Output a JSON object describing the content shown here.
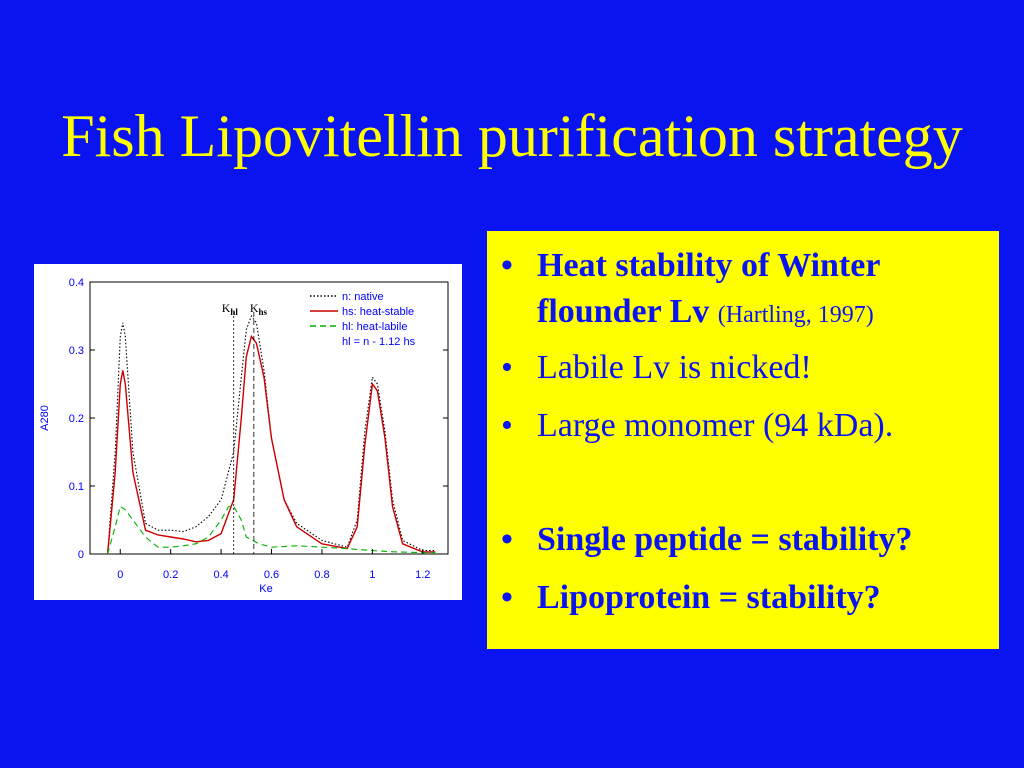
{
  "slide": {
    "title": "Fish Lipovitellin purification strategy",
    "colors": {
      "background": "#0a14f0",
      "title": "#ffff00",
      "panel": "#ffff00",
      "panel_text": "#0a14f0"
    }
  },
  "bullets": [
    {
      "marker": "•",
      "lines": [
        "Heat stability of Winter",
        "flounder Lv"
      ],
      "citation": "(Hartling, 1997)",
      "bold": true
    },
    {
      "marker": "•",
      "text": "Labile Lv is nicked!",
      "bold": false
    },
    {
      "marker": "•",
      "text": "Large monomer (94 kDa).",
      "bold": false
    },
    {
      "marker": "•",
      "text": "Single peptide = stability?",
      "bold": true
    },
    {
      "marker": "•",
      "text": "Lipoprotein =  stability?",
      "bold": true
    }
  ],
  "chart_data": {
    "type": "line",
    "xlabel": "Ke",
    "ylabel": "A280",
    "xlim": [
      -0.12,
      1.3
    ],
    "ylim": [
      0,
      0.4
    ],
    "xticks": [
      "0",
      "0.2",
      "0.4",
      "0.6",
      "0.8",
      "1",
      "1.2"
    ],
    "xtick_values": [
      0,
      0.2,
      0.4,
      0.6,
      0.8,
      1.0,
      1.2
    ],
    "yticks": [
      "0",
      "0.1",
      "0.2",
      "0.3",
      "0.4"
    ],
    "ytick_values": [
      0,
      0.1,
      0.2,
      0.3,
      0.4
    ],
    "grid": false,
    "legend_position": "top-right",
    "markers": [
      {
        "label_main": "K",
        "label_sub": "hl",
        "x": 0.45
      },
      {
        "label_main": "K",
        "label_sub": "hs",
        "x": 0.53
      }
    ],
    "series": [
      {
        "name": "n: native",
        "color": "#000000",
        "dash": "dotted",
        "x": [
          -0.05,
          -0.02,
          0.0,
          0.01,
          0.02,
          0.05,
          0.1,
          0.15,
          0.2,
          0.25,
          0.3,
          0.35,
          0.4,
          0.45,
          0.48,
          0.5,
          0.52,
          0.54,
          0.57,
          0.6,
          0.65,
          0.7,
          0.8,
          0.9,
          0.94,
          0.97,
          1.0,
          1.02,
          1.05,
          1.08,
          1.12,
          1.2,
          1.25
        ],
        "y": [
          0.0,
          0.15,
          0.32,
          0.34,
          0.32,
          0.15,
          0.045,
          0.035,
          0.035,
          0.033,
          0.04,
          0.055,
          0.08,
          0.15,
          0.26,
          0.33,
          0.35,
          0.34,
          0.27,
          0.17,
          0.08,
          0.045,
          0.02,
          0.01,
          0.05,
          0.18,
          0.26,
          0.25,
          0.18,
          0.08,
          0.02,
          0.005,
          0.005
        ]
      },
      {
        "name": "hs: heat-stable",
        "color": "#cc0000",
        "dash": "solid",
        "x": [
          -0.05,
          -0.02,
          0.0,
          0.01,
          0.02,
          0.05,
          0.1,
          0.15,
          0.2,
          0.25,
          0.3,
          0.35,
          0.4,
          0.45,
          0.48,
          0.5,
          0.52,
          0.54,
          0.57,
          0.6,
          0.65,
          0.7,
          0.8,
          0.9,
          0.94,
          0.97,
          1.0,
          1.02,
          1.05,
          1.08,
          1.12,
          1.2,
          1.25
        ],
        "y": [
          0.0,
          0.12,
          0.25,
          0.27,
          0.25,
          0.12,
          0.035,
          0.028,
          0.025,
          0.022,
          0.018,
          0.02,
          0.03,
          0.08,
          0.2,
          0.29,
          0.32,
          0.31,
          0.26,
          0.17,
          0.08,
          0.04,
          0.015,
          0.008,
          0.04,
          0.16,
          0.25,
          0.24,
          0.17,
          0.07,
          0.015,
          0.003,
          0.003
        ]
      },
      {
        "name": "hl: heat-labile",
        "color": "#00b000",
        "dash": "dashed",
        "x": [
          -0.05,
          -0.02,
          0.0,
          0.02,
          0.05,
          0.1,
          0.15,
          0.2,
          0.25,
          0.3,
          0.35,
          0.4,
          0.43,
          0.45,
          0.48,
          0.5,
          0.55,
          0.6,
          0.7,
          0.8,
          0.9,
          1.0,
          1.1,
          1.2,
          1.25
        ],
        "y": [
          0.0,
          0.04,
          0.07,
          0.065,
          0.05,
          0.025,
          0.01,
          0.01,
          0.012,
          0.015,
          0.025,
          0.05,
          0.07,
          0.07,
          0.05,
          0.025,
          0.015,
          0.01,
          0.012,
          0.01,
          0.008,
          0.005,
          0.003,
          0.002,
          0.002
        ]
      },
      {
        "name": "hl = n - 1.12 hs",
        "color": "#0000ff",
        "dash": "none",
        "x": [],
        "y": []
      }
    ]
  }
}
